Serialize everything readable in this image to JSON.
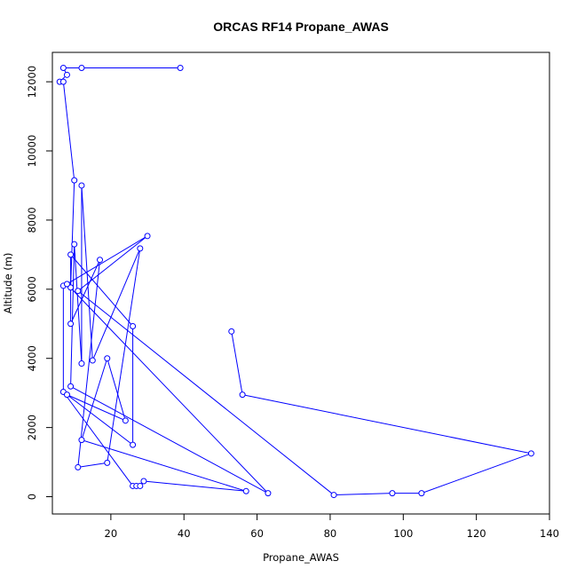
{
  "chart_data": {
    "type": "line",
    "title": "ORCAS RF14 Propane_AWAS",
    "xlabel": "Propane_AWAS",
    "ylabel": "Altitude (m)",
    "xlim": [
      4,
      140
    ],
    "ylim": [
      -500,
      12850
    ],
    "x_ticks": [
      20,
      40,
      60,
      80,
      100,
      120,
      140
    ],
    "y_ticks": [
      0,
      2000,
      4000,
      6000,
      8000,
      10000,
      12000
    ],
    "x_tick_labels": [
      "20",
      "40",
      "60",
      "80",
      "100",
      "120",
      "140"
    ],
    "y_tick_labels": [
      "0",
      "2000",
      "4000",
      "6000",
      "8000",
      "10000",
      "12000"
    ],
    "series": [
      {
        "color": "#0000ff",
        "marker": "open-circle",
        "points": [
          [
            39,
            12400
          ],
          [
            12,
            12400
          ],
          [
            7,
            12400
          ],
          [
            8,
            12200
          ],
          [
            6,
            12000
          ],
          [
            7,
            12000
          ],
          [
            10,
            9150
          ],
          [
            9,
            6050
          ],
          [
            7,
            6100
          ],
          [
            7,
            3030
          ],
          [
            26,
            310
          ],
          [
            27,
            310
          ],
          [
            28,
            310
          ],
          [
            29,
            450
          ],
          [
            57,
            160
          ],
          [
            12,
            1640
          ],
          [
            19,
            4000
          ],
          [
            24,
            2200
          ],
          [
            8,
            2950
          ],
          [
            26,
            1500
          ],
          [
            26,
            4930
          ],
          [
            9,
            7000
          ],
          [
            9,
            5000
          ],
          [
            17,
            6850
          ],
          [
            11,
            850
          ],
          [
            19,
            980
          ],
          [
            28,
            7180
          ],
          [
            15,
            3940
          ],
          [
            12,
            9000
          ],
          [
            12,
            3850
          ],
          [
            10,
            7300
          ],
          [
            9,
            3190
          ],
          [
            63,
            100
          ],
          [
            8,
            6150
          ],
          [
            30,
            7540
          ],
          [
            11,
            5950
          ],
          [
            81,
            50
          ],
          [
            97,
            100
          ],
          [
            105,
            100
          ],
          [
            135,
            1250
          ],
          [
            56,
            2950
          ],
          [
            53,
            4780
          ]
        ]
      }
    ]
  }
}
